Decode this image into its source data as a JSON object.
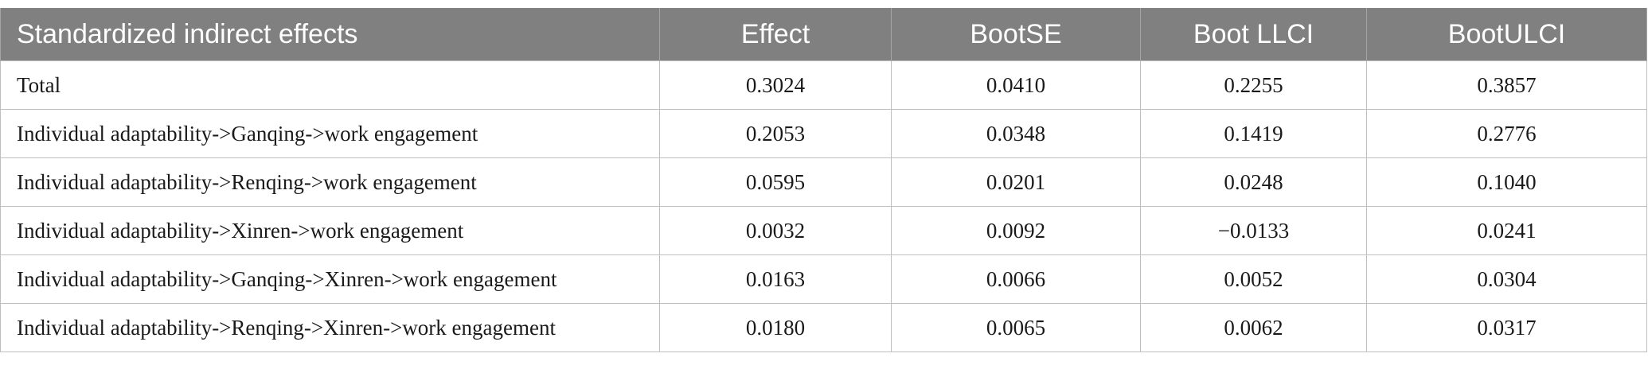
{
  "table": {
    "headers": [
      "Standardized indirect effects",
      "Effect",
      "BootSE",
      "Boot LLCI",
      "BootULCI"
    ],
    "rows": [
      [
        "Total",
        "0.3024",
        "0.0410",
        "0.2255",
        "0.3857"
      ],
      [
        "Individual adaptability->Ganqing->work engagement",
        "0.2053",
        "0.0348",
        "0.1419",
        "0.2776"
      ],
      [
        "Individual adaptability->Renqing->work engagement",
        "0.0595",
        "0.0201",
        "0.0248",
        "0.1040"
      ],
      [
        "Individual adaptability->Xinren->work engagement",
        "0.0032",
        "0.0092",
        "−0.0133",
        "0.0241"
      ],
      [
        "Individual adaptability->Ganqing->Xinren->work engagement",
        "0.0163",
        "0.0066",
        "0.0052",
        "0.0304"
      ],
      [
        "Individual adaptability->Renqing->Xinren->work engagement",
        "0.0180",
        "0.0065",
        "0.0062",
        "0.0317"
      ]
    ]
  }
}
